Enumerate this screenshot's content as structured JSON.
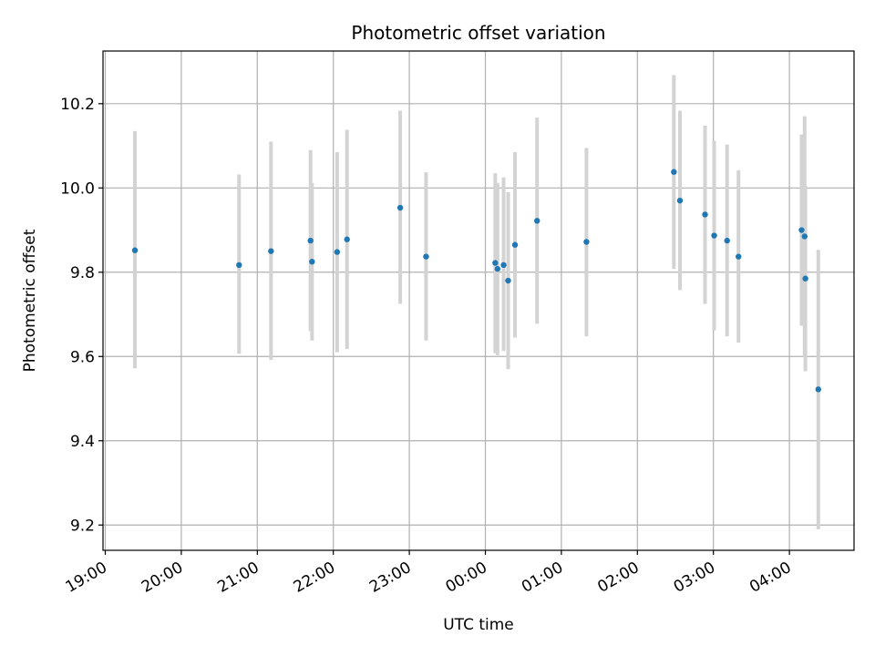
{
  "chart_data": {
    "type": "scatter",
    "title": "Photometric offset variation",
    "xlabel": "UTC time",
    "ylabel": "Photometric offset",
    "x_unit": "hours since 19:00 UTC",
    "xlim": [
      -0.03,
      9.85
    ],
    "ylim": [
      9.14,
      10.325
    ],
    "x_ticks": [
      {
        "label": "19:00",
        "value": 0
      },
      {
        "label": "20:00",
        "value": 1
      },
      {
        "label": "21:00",
        "value": 2
      },
      {
        "label": "22:00",
        "value": 3
      },
      {
        "label": "23:00",
        "value": 4
      },
      {
        "label": "00:00",
        "value": 5
      },
      {
        "label": "01:00",
        "value": 6
      },
      {
        "label": "02:00",
        "value": 7
      },
      {
        "label": "03:00",
        "value": 8
      },
      {
        "label": "04:00",
        "value": 9
      }
    ],
    "y_ticks": [
      {
        "label": "9.2",
        "value": 9.2
      },
      {
        "label": "9.4",
        "value": 9.4
      },
      {
        "label": "9.6",
        "value": 9.6
      },
      {
        "label": "9.8",
        "value": 9.8
      },
      {
        "label": "10.0",
        "value": 10.0
      },
      {
        "label": "10.2",
        "value": 10.2
      }
    ],
    "grid": true,
    "marker_color": "#1f77b4",
    "errorbar_color": "#d3d3d3",
    "points": [
      {
        "x": 0.39,
        "y": 9.852,
        "err_low": 9.572,
        "err_high": 10.135
      },
      {
        "x": 1.76,
        "y": 9.817,
        "err_low": 9.607,
        "err_high": 10.032
      },
      {
        "x": 2.18,
        "y": 9.85,
        "err_low": 9.592,
        "err_high": 10.11
      },
      {
        "x": 2.7,
        "y": 9.875,
        "err_low": 9.66,
        "err_high": 10.09
      },
      {
        "x": 2.72,
        "y": 9.825,
        "err_low": 9.638,
        "err_high": 10.012
      },
      {
        "x": 3.05,
        "y": 9.848,
        "err_low": 9.61,
        "err_high": 10.085
      },
      {
        "x": 3.18,
        "y": 9.878,
        "err_low": 9.618,
        "err_high": 10.138
      },
      {
        "x": 3.88,
        "y": 9.953,
        "err_low": 9.725,
        "err_high": 10.183
      },
      {
        "x": 4.22,
        "y": 9.837,
        "err_low": 9.638,
        "err_high": 10.037
      },
      {
        "x": 5.13,
        "y": 9.822,
        "err_low": 9.608,
        "err_high": 10.035
      },
      {
        "x": 5.16,
        "y": 9.808,
        "err_low": 9.603,
        "err_high": 10.012
      },
      {
        "x": 5.24,
        "y": 9.817,
        "err_low": 9.613,
        "err_high": 10.025
      },
      {
        "x": 5.3,
        "y": 9.78,
        "err_low": 9.57,
        "err_high": 9.99
      },
      {
        "x": 5.39,
        "y": 9.865,
        "err_low": 9.645,
        "err_high": 10.085
      },
      {
        "x": 5.68,
        "y": 9.922,
        "err_low": 9.678,
        "err_high": 10.167
      },
      {
        "x": 6.33,
        "y": 9.872,
        "err_low": 9.648,
        "err_high": 10.095
      },
      {
        "x": 7.48,
        "y": 10.038,
        "err_low": 9.808,
        "err_high": 10.268
      },
      {
        "x": 7.56,
        "y": 9.97,
        "err_low": 9.758,
        "err_high": 10.183
      },
      {
        "x": 7.89,
        "y": 9.937,
        "err_low": 9.725,
        "err_high": 10.148
      },
      {
        "x": 8.01,
        "y": 9.887,
        "err_low": 9.662,
        "err_high": 10.112
      },
      {
        "x": 8.18,
        "y": 9.875,
        "err_low": 9.648,
        "err_high": 10.103
      },
      {
        "x": 8.33,
        "y": 9.837,
        "err_low": 9.633,
        "err_high": 10.042
      },
      {
        "x": 9.16,
        "y": 9.9,
        "err_low": 9.673,
        "err_high": 10.127
      },
      {
        "x": 9.2,
        "y": 9.885,
        "err_low": 9.6,
        "err_high": 10.17
      },
      {
        "x": 9.21,
        "y": 9.785,
        "err_low": 9.565,
        "err_high": 10.005
      },
      {
        "x": 9.38,
        "y": 9.522,
        "err_low": 9.19,
        "err_high": 9.853
      }
    ]
  }
}
